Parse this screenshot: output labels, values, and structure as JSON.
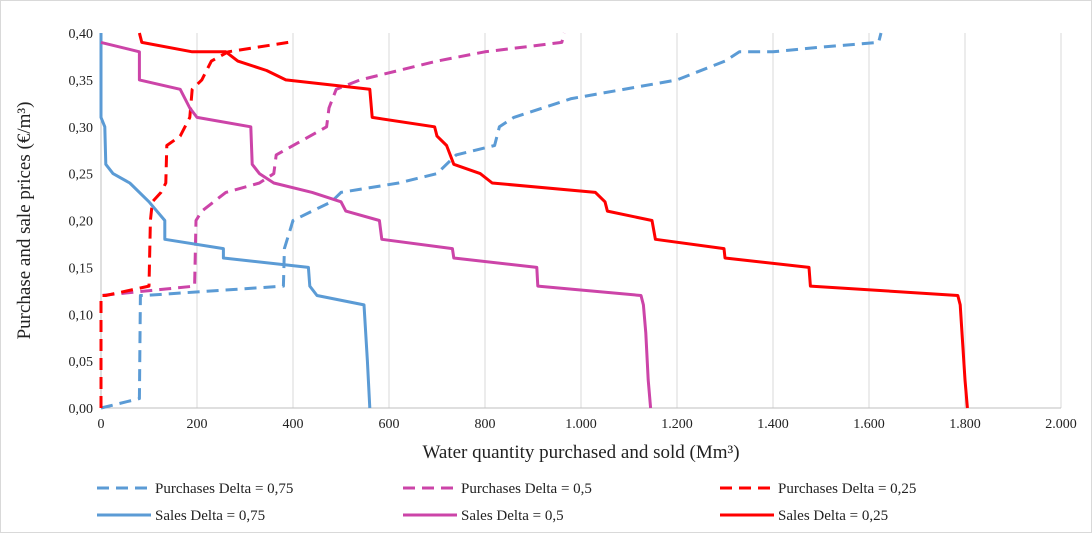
{
  "chart_data": {
    "type": "line",
    "xlabel": "Water quantity purchased and sold (Mm³)",
    "ylabel": "Purchase and sale prices (€/m³)",
    "xlim": [
      0,
      2000
    ],
    "ylim": [
      0,
      0.4
    ],
    "x_ticks": [
      {
        "value": 0,
        "label": "0"
      },
      {
        "value": 200,
        "label": "200"
      },
      {
        "value": 400,
        "label": "400"
      },
      {
        "value": 600,
        "label": "600"
      },
      {
        "value": 800,
        "label": "800"
      },
      {
        "value": 1000,
        "label": "1.000"
      },
      {
        "value": 1200,
        "label": "1.200"
      },
      {
        "value": 1400,
        "label": "1.400"
      },
      {
        "value": 1600,
        "label": "1.600"
      },
      {
        "value": 1800,
        "label": "1.800"
      },
      {
        "value": 2000,
        "label": "2.000"
      }
    ],
    "y_ticks": [
      {
        "value": 0,
        "label": "0,00"
      },
      {
        "value": 0.05,
        "label": "0,05"
      },
      {
        "value": 0.1,
        "label": "0,10"
      },
      {
        "value": 0.15,
        "label": "0,15"
      },
      {
        "value": 0.2,
        "label": "0,20"
      },
      {
        "value": 0.25,
        "label": "0,25"
      },
      {
        "value": 0.3,
        "label": "0,30"
      },
      {
        "value": 0.35,
        "label": "0,35"
      },
      {
        "value": 0.4,
        "label": "0,40"
      }
    ],
    "grid": "vertical",
    "legend_position": "bottom",
    "series": [
      {
        "name": "Purchases Delta = 0,75",
        "color": "#5b9bd5",
        "dash": true,
        "points": [
          [
            0,
            0
          ],
          [
            80,
            0.01
          ],
          [
            82,
            0.12
          ],
          [
            90,
            0.12
          ],
          [
            380,
            0.13
          ],
          [
            382,
            0.17
          ],
          [
            400,
            0.2
          ],
          [
            440,
            0.21
          ],
          [
            480,
            0.22
          ],
          [
            500,
            0.23
          ],
          [
            620,
            0.24
          ],
          [
            700,
            0.25
          ],
          [
            740,
            0.27
          ],
          [
            820,
            0.28
          ],
          [
            830,
            0.3
          ],
          [
            860,
            0.31
          ],
          [
            980,
            0.33
          ],
          [
            1200,
            0.35
          ],
          [
            1300,
            0.37
          ],
          [
            1330,
            0.38
          ],
          [
            1400,
            0.38
          ],
          [
            1500,
            0.385
          ],
          [
            1620,
            0.39
          ],
          [
            1625,
            0.4
          ]
        ]
      },
      {
        "name": "Purchases Delta = 0,5",
        "color": "#cc44a8",
        "dash": true,
        "points": [
          [
            0,
            0
          ],
          [
            0,
            0.12
          ],
          [
            195,
            0.13
          ],
          [
            198,
            0.2
          ],
          [
            210,
            0.21
          ],
          [
            260,
            0.23
          ],
          [
            330,
            0.24
          ],
          [
            360,
            0.25
          ],
          [
            365,
            0.27
          ],
          [
            470,
            0.3
          ],
          [
            475,
            0.32
          ],
          [
            490,
            0.34
          ],
          [
            540,
            0.35
          ],
          [
            700,
            0.37
          ],
          [
            800,
            0.38
          ],
          [
            960,
            0.39
          ],
          [
            965,
            0.4
          ]
        ]
      },
      {
        "name": "Purchases Delta = 0,25",
        "color": "#ff0000",
        "dash": true,
        "points": [
          [
            0,
            0
          ],
          [
            0,
            0.12
          ],
          [
            10,
            0.12
          ],
          [
            100,
            0.13
          ],
          [
            103,
            0.2
          ],
          [
            107,
            0.22
          ],
          [
            125,
            0.23
          ],
          [
            135,
            0.24
          ],
          [
            137,
            0.28
          ],
          [
            165,
            0.29
          ],
          [
            185,
            0.31
          ],
          [
            190,
            0.34
          ],
          [
            210,
            0.35
          ],
          [
            230,
            0.37
          ],
          [
            265,
            0.38
          ],
          [
            390,
            0.39
          ]
        ]
      },
      {
        "name": "Sales Delta = 0,75",
        "color": "#5b9bd5",
        "dash": false,
        "points": [
          [
            560,
            0
          ],
          [
            555,
            0.05
          ],
          [
            548,
            0.11
          ],
          [
            450,
            0.12
          ],
          [
            435,
            0.13
          ],
          [
            432,
            0.15
          ],
          [
            255,
            0.16
          ],
          [
            255,
            0.17
          ],
          [
            133,
            0.18
          ],
          [
            133,
            0.2
          ],
          [
            100,
            0.22
          ],
          [
            60,
            0.24
          ],
          [
            25,
            0.25
          ],
          [
            10,
            0.26
          ],
          [
            8,
            0.3
          ],
          [
            0,
            0.31
          ],
          [
            0,
            0.4
          ]
        ]
      },
      {
        "name": "Sales Delta = 0,5",
        "color": "#cc44a8",
        "dash": false,
        "points": [
          [
            1145,
            0
          ],
          [
            1140,
            0.03
          ],
          [
            1135,
            0.08
          ],
          [
            1130,
            0.11
          ],
          [
            1125,
            0.12
          ],
          [
            910,
            0.13
          ],
          [
            908,
            0.15
          ],
          [
            735,
            0.16
          ],
          [
            732,
            0.17
          ],
          [
            585,
            0.18
          ],
          [
            580,
            0.2
          ],
          [
            510,
            0.21
          ],
          [
            500,
            0.22
          ],
          [
            440,
            0.23
          ],
          [
            360,
            0.24
          ],
          [
            330,
            0.25
          ],
          [
            315,
            0.26
          ],
          [
            312,
            0.3
          ],
          [
            200,
            0.31
          ],
          [
            185,
            0.32
          ],
          [
            165,
            0.34
          ],
          [
            80,
            0.35
          ],
          [
            80,
            0.38
          ],
          [
            0,
            0.39
          ]
        ]
      },
      {
        "name": "Sales Delta = 0,25",
        "color": "#ff0000",
        "dash": false,
        "points": [
          [
            1805,
            0
          ],
          [
            1800,
            0.03
          ],
          [
            1795,
            0.07
          ],
          [
            1790,
            0.11
          ],
          [
            1785,
            0.12
          ],
          [
            1478,
            0.13
          ],
          [
            1475,
            0.15
          ],
          [
            1300,
            0.16
          ],
          [
            1298,
            0.17
          ],
          [
            1155,
            0.18
          ],
          [
            1148,
            0.2
          ],
          [
            1055,
            0.21
          ],
          [
            1050,
            0.22
          ],
          [
            1030,
            0.23
          ],
          [
            815,
            0.24
          ],
          [
            790,
            0.25
          ],
          [
            735,
            0.26
          ],
          [
            720,
            0.28
          ],
          [
            700,
            0.29
          ],
          [
            695,
            0.3
          ],
          [
            565,
            0.31
          ],
          [
            560,
            0.34
          ],
          [
            385,
            0.35
          ],
          [
            345,
            0.36
          ],
          [
            285,
            0.37
          ],
          [
            260,
            0.38
          ],
          [
            190,
            0.38
          ],
          [
            85,
            0.39
          ],
          [
            80,
            0.4
          ]
        ]
      }
    ]
  }
}
